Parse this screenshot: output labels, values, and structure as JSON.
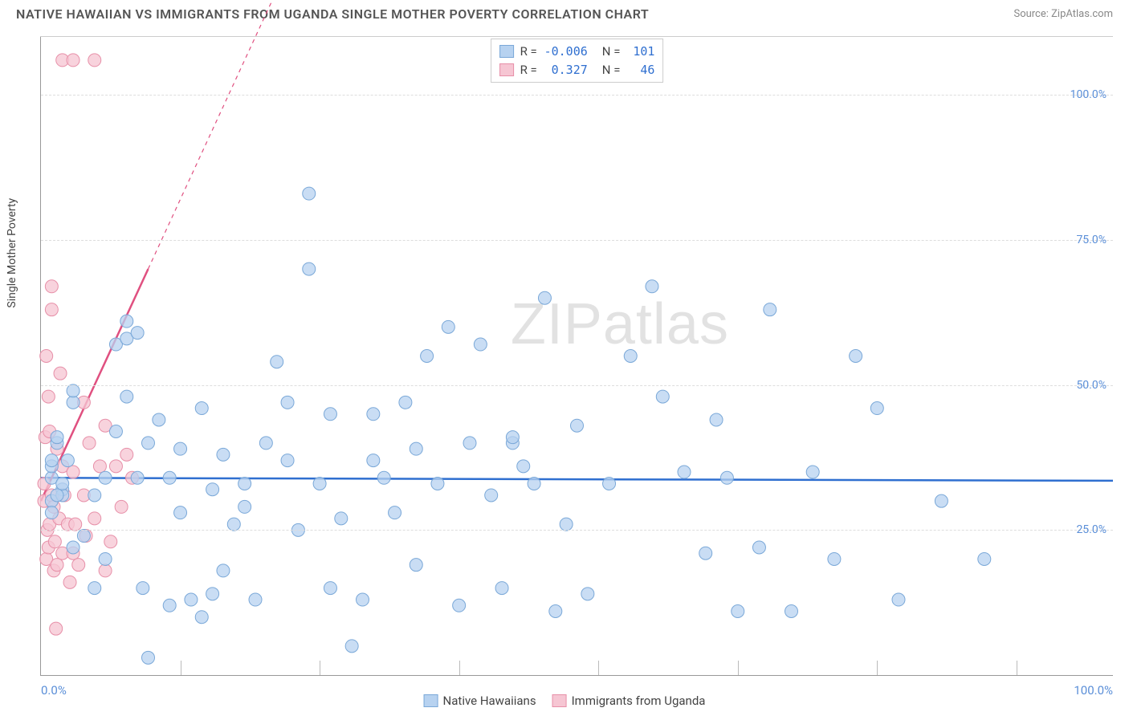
{
  "title": "NATIVE HAWAIIAN VS IMMIGRANTS FROM UGANDA SINGLE MOTHER POVERTY CORRELATION CHART",
  "source": "Source: ZipAtlas.com",
  "y_axis_label": "Single Mother Poverty",
  "watermark_a": "ZIP",
  "watermark_b": "atlas",
  "chart": {
    "type": "scatter",
    "xlim": [
      0,
      100
    ],
    "ylim": [
      0,
      110
    ],
    "x_ticks": [
      0,
      100
    ],
    "x_tick_labels": [
      "0.0%",
      "100.0%"
    ],
    "x_minor_ticks": [
      13,
      26,
      39,
      52,
      65,
      78,
      91
    ],
    "y_ticks": [
      25,
      50,
      75,
      100
    ],
    "y_tick_labels": [
      "25.0%",
      "50.0%",
      "75.0%",
      "100.0%"
    ],
    "tick_color": "#5b8fd8",
    "grid_color": "#dddddd",
    "background": "#ffffff",
    "series": [
      {
        "name": "Native Hawaiians",
        "marker_fill": "#b7d2f0",
        "marker_stroke": "#7aa8d8",
        "marker_opacity": 0.75,
        "marker_radius": 8,
        "R": "-0.006",
        "N": "101",
        "trend": {
          "y_at_x0": 34.0,
          "y_at_x100": 33.5,
          "color": "#2f6fd0",
          "width": 2.5,
          "dash": "none"
        },
        "points": [
          [
            1,
            34
          ],
          [
            1,
            36
          ],
          [
            1,
            30
          ],
          [
            1.5,
            40
          ],
          [
            1.5,
            41
          ],
          [
            2,
            32
          ],
          [
            2,
            31
          ],
          [
            2.5,
            37
          ],
          [
            3,
            47
          ],
          [
            3,
            49
          ],
          [
            3,
            22
          ],
          [
            4,
            24
          ],
          [
            5,
            31
          ],
          [
            5,
            15
          ],
          [
            6,
            20
          ],
          [
            6,
            34
          ],
          [
            7,
            42
          ],
          [
            7,
            57
          ],
          [
            8,
            61
          ],
          [
            8,
            48
          ],
          [
            8,
            58
          ],
          [
            9,
            34
          ],
          [
            9,
            59
          ],
          [
            9.5,
            15
          ],
          [
            10,
            3
          ],
          [
            10,
            40
          ],
          [
            11,
            44
          ],
          [
            12,
            12
          ],
          [
            12,
            34
          ],
          [
            13,
            28
          ],
          [
            13,
            39
          ],
          [
            14,
            13
          ],
          [
            15,
            46
          ],
          [
            15,
            10
          ],
          [
            16,
            14
          ],
          [
            16,
            32
          ],
          [
            17,
            38
          ],
          [
            17,
            18
          ],
          [
            18,
            26
          ],
          [
            19,
            33
          ],
          [
            19,
            29
          ],
          [
            20,
            13
          ],
          [
            21,
            40
          ],
          [
            22,
            54
          ],
          [
            23,
            47
          ],
          [
            23,
            37
          ],
          [
            24,
            25
          ],
          [
            25,
            83
          ],
          [
            25,
            70
          ],
          [
            26,
            33
          ],
          [
            27,
            15
          ],
          [
            27,
            45
          ],
          [
            28,
            27
          ],
          [
            29,
            5
          ],
          [
            30,
            13
          ],
          [
            31,
            37
          ],
          [
            31,
            45
          ],
          [
            32,
            34
          ],
          [
            33,
            28
          ],
          [
            34,
            47
          ],
          [
            35,
            19
          ],
          [
            35,
            39
          ],
          [
            36,
            55
          ],
          [
            37,
            33
          ],
          [
            38,
            60
          ],
          [
            39,
            12
          ],
          [
            40,
            40
          ],
          [
            41,
            57
          ],
          [
            42,
            31
          ],
          [
            43,
            15
          ],
          [
            44,
            40
          ],
          [
            44,
            41
          ],
          [
            45,
            36
          ],
          [
            46,
            33
          ],
          [
            47,
            65
          ],
          [
            48,
            11
          ],
          [
            49,
            26
          ],
          [
            50,
            43
          ],
          [
            51,
            14
          ],
          [
            53,
            33
          ],
          [
            55,
            55
          ],
          [
            57,
            67
          ],
          [
            58,
            48
          ],
          [
            60,
            35
          ],
          [
            62,
            21
          ],
          [
            63,
            44
          ],
          [
            64,
            34
          ],
          [
            65,
            11
          ],
          [
            67,
            22
          ],
          [
            68,
            63
          ],
          [
            70,
            11
          ],
          [
            72,
            35
          ],
          [
            74,
            20
          ],
          [
            76,
            55
          ],
          [
            78,
            46
          ],
          [
            80,
            13
          ],
          [
            84,
            30
          ],
          [
            88,
            20
          ],
          [
            1,
            37
          ],
          [
            2,
            33
          ],
          [
            1,
            28
          ],
          [
            1.5,
            31
          ]
        ]
      },
      {
        "name": "Immigrants from Uganda",
        "marker_fill": "#f6c6d3",
        "marker_stroke": "#e78fa8",
        "marker_opacity": 0.78,
        "marker_radius": 8,
        "R": "0.327",
        "N": "46",
        "trend": {
          "y_at_x0": 30,
          "y_at_x100": 430,
          "color": "#e05080",
          "width": 2.5,
          "dash_after_x": 10
        },
        "points": [
          [
            0.3,
            30
          ],
          [
            0.3,
            33
          ],
          [
            0.4,
            41
          ],
          [
            0.5,
            20
          ],
          [
            0.5,
            55
          ],
          [
            0.6,
            25
          ],
          [
            0.7,
            48
          ],
          [
            0.7,
            22
          ],
          [
            0.8,
            42
          ],
          [
            0.8,
            26
          ],
          [
            1,
            63
          ],
          [
            1,
            67
          ],
          [
            1,
            31
          ],
          [
            1.2,
            18
          ],
          [
            1.2,
            29
          ],
          [
            1.3,
            23
          ],
          [
            1.4,
            8
          ],
          [
            1.5,
            39
          ],
          [
            1.5,
            19
          ],
          [
            1.7,
            27
          ],
          [
            1.8,
            52
          ],
          [
            2,
            36
          ],
          [
            2,
            106
          ],
          [
            2,
            21
          ],
          [
            2.2,
            31
          ],
          [
            2.5,
            26
          ],
          [
            2.7,
            16
          ],
          [
            3,
            106
          ],
          [
            3,
            21
          ],
          [
            3,
            35
          ],
          [
            3.2,
            26
          ],
          [
            3.5,
            19
          ],
          [
            4,
            47
          ],
          [
            4,
            31
          ],
          [
            4.2,
            24
          ],
          [
            4.5,
            40
          ],
          [
            5,
            106
          ],
          [
            5,
            27
          ],
          [
            5.5,
            36
          ],
          [
            6,
            18
          ],
          [
            6,
            43
          ],
          [
            6.5,
            23
          ],
          [
            7,
            36
          ],
          [
            7.5,
            29
          ],
          [
            8,
            38
          ],
          [
            8.5,
            34
          ]
        ]
      }
    ]
  },
  "stats_box": {
    "value_color": "#2f6fd0",
    "label_r": "R =",
    "label_n": "N ="
  },
  "legend": {
    "items": [
      "Native Hawaiians",
      "Immigrants from Uganda"
    ]
  }
}
